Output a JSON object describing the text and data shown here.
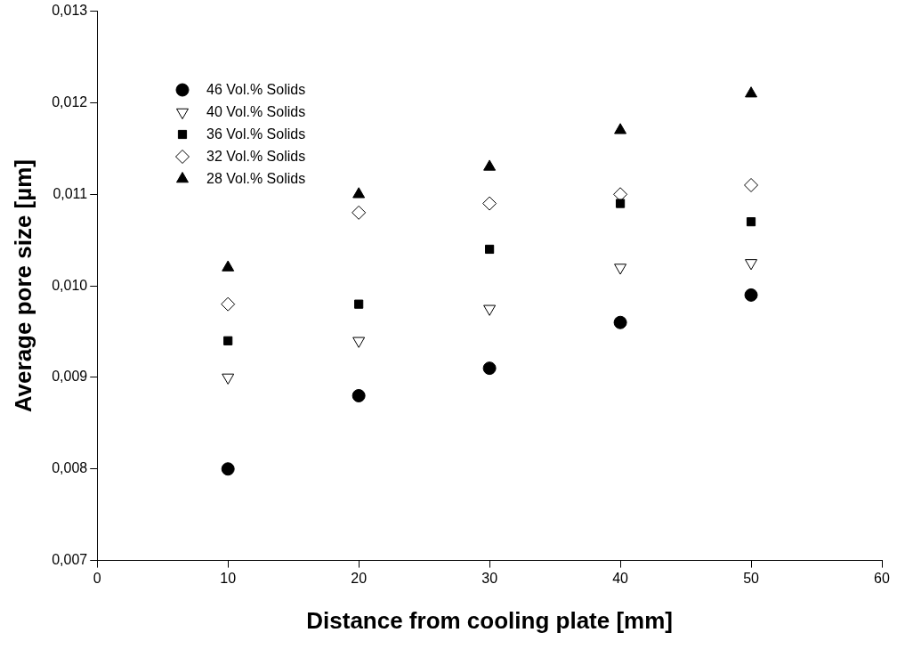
{
  "chart_data": {
    "type": "scatter",
    "xlabel": "Distance from cooling plate [mm]",
    "ylabel": "Average pore size [µm]",
    "x": [
      10,
      20,
      30,
      40,
      50
    ],
    "series": [
      {
        "name": "46 Vol.% Solids",
        "color": "#000000",
        "marker": "circle",
        "values": [
          0.008,
          0.0088,
          0.0091,
          0.0096,
          0.0099
        ]
      },
      {
        "name": "40 Vol.% Solids",
        "color": "#000000",
        "marker": "triangle-down-open",
        "values": [
          0.009,
          0.0094,
          0.00975,
          0.0102,
          0.01025
        ]
      },
      {
        "name": "36 Vol.% Solids",
        "color": "#000000",
        "marker": "square",
        "values": [
          0.0094,
          0.0098,
          0.0104,
          0.0109,
          0.0107
        ]
      },
      {
        "name": "32 Vol.% Solids",
        "color": "#000000",
        "marker": "diamond-open",
        "values": [
          0.0098,
          0.0108,
          0.0109,
          0.011,
          0.0111
        ]
      },
      {
        "name": "28 Vol.% Solids",
        "color": "#000000",
        "marker": "triangle",
        "values": [
          0.0102,
          0.011,
          0.0113,
          0.0117,
          0.0121
        ]
      }
    ],
    "xlim": [
      0,
      60
    ],
    "xticks": [
      0,
      10,
      20,
      30,
      40,
      50,
      60
    ],
    "ylim": [
      0.007,
      0.013
    ],
    "yticks": [
      {
        "value": 0.007,
        "label": "0,007"
      },
      {
        "value": 0.008,
        "label": "0,008"
      },
      {
        "value": 0.009,
        "label": "0,009"
      },
      {
        "value": 0.01,
        "label": "0,010"
      },
      {
        "value": 0.011,
        "label": "0,011"
      },
      {
        "value": 0.012,
        "label": "0,012"
      },
      {
        "value": 0.013,
        "label": "0,013"
      }
    ],
    "grid": false,
    "legend": "top left"
  }
}
